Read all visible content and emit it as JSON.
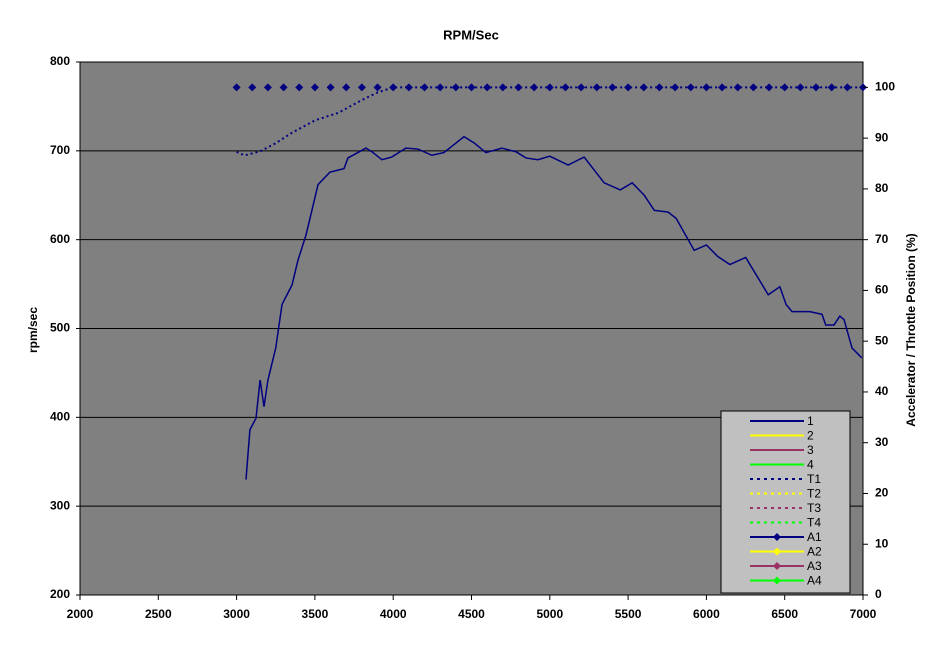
{
  "chart_data": {
    "type": "line",
    "title": "RPM/Sec",
    "ylabel": "rpm/sec",
    "y2label": "Accelerator / Throttle Position (%)",
    "xlim": [
      2000,
      7000
    ],
    "xticks": [
      2000,
      2500,
      3000,
      3500,
      4000,
      4500,
      5000,
      5500,
      6000,
      6500,
      7000
    ],
    "ylim": [
      200,
      800
    ],
    "yticks": [
      200,
      300,
      400,
      500,
      600,
      700,
      800
    ],
    "y2lim": [
      0,
      105
    ],
    "y2ticks": [
      0,
      10,
      20,
      30,
      40,
      50,
      60,
      70,
      80,
      90,
      100
    ],
    "grid": true,
    "legend": "bottom-right",
    "series": [
      {
        "name": "1",
        "color": "#000080",
        "style": "solid",
        "x": [
          3060,
          3085,
          3124,
          3150,
          3175,
          3200,
          3250,
          3290,
          3354,
          3392,
          3443,
          3481,
          3520,
          3596,
          3686,
          3711,
          3826,
          3864,
          3928,
          3990,
          4081,
          4158,
          4247,
          4324,
          4452,
          4516,
          4592,
          4694,
          4784,
          4848,
          4924,
          5000,
          5117,
          5219,
          5347,
          5450,
          5526,
          5603,
          5667,
          5756,
          5807,
          5922,
          6000,
          6073,
          6150,
          6251,
          6395,
          6469,
          6509,
          6547,
          6660,
          6738,
          6762,
          6815,
          6852,
          6879,
          6930,
          6992
        ],
        "values": [
          330,
          386,
          399,
          442,
          412,
          442,
          478,
          527,
          549,
          577,
          605,
          633,
          662,
          676,
          680,
          692,
          703,
          699,
          690,
          693,
          703,
          702,
          695,
          698,
          716,
          709,
          698,
          703,
          699,
          692,
          690,
          694,
          684,
          693,
          664,
          656,
          664,
          650,
          633,
          631,
          624,
          588,
          594,
          581,
          572,
          580,
          538,
          547,
          527,
          519,
          519,
          516,
          504,
          504,
          514,
          510,
          478,
          467
        ]
      },
      {
        "name": "2",
        "color": "#ffff00",
        "style": "solid",
        "x": [],
        "values": []
      },
      {
        "name": "3",
        "color": "#993366",
        "style": "solid",
        "x": [],
        "values": []
      },
      {
        "name": "4",
        "color": "#00ff00",
        "style": "solid",
        "x": [],
        "values": []
      },
      {
        "name": "T1",
        "color": "#000080",
        "style": "dotted",
        "axis": "y2",
        "x": [
          3000,
          3050,
          3150,
          3250,
          3350,
          3500,
          3650,
          3800,
          3900,
          4000,
          7000
        ],
        "values": [
          87.3,
          86.6,
          87.4,
          89,
          91,
          93.5,
          95,
          97.5,
          99,
          100,
          100
        ]
      },
      {
        "name": "T2",
        "color": "#ffff00",
        "style": "dotted",
        "axis": "y2",
        "x": [],
        "values": []
      },
      {
        "name": "T3",
        "color": "#993366",
        "style": "dotted",
        "axis": "y2",
        "x": [],
        "values": []
      },
      {
        "name": "T4",
        "color": "#00ff00",
        "style": "dotted",
        "axis": "y2",
        "x": [],
        "values": []
      },
      {
        "name": "A1",
        "color": "#000080",
        "style": "marker",
        "axis": "y2",
        "x": [
          3000,
          3100,
          3200,
          3300,
          3400,
          3500,
          3600,
          3700,
          3800,
          3900,
          4000,
          4100,
          4200,
          4300,
          4400,
          4500,
          4600,
          4700,
          4800,
          4900,
          5000,
          5100,
          5200,
          5300,
          5400,
          5500,
          5600,
          5700,
          5800,
          5900,
          6000,
          6100,
          6200,
          6300,
          6400,
          6500,
          6600,
          6700,
          6800,
          6900,
          7000
        ],
        "values": [
          100,
          100,
          100,
          100,
          100,
          100,
          100,
          100,
          100,
          100,
          100,
          100,
          100,
          100,
          100,
          100,
          100,
          100,
          100,
          100,
          100,
          100,
          100,
          100,
          100,
          100,
          100,
          100,
          100,
          100,
          100,
          100,
          100,
          100,
          100,
          100,
          100,
          100,
          100,
          100,
          100
        ]
      },
      {
        "name": "A2",
        "color": "#ffff00",
        "style": "marker",
        "axis": "y2",
        "x": [],
        "values": []
      },
      {
        "name": "A3",
        "color": "#993366",
        "style": "marker",
        "axis": "y2",
        "x": [],
        "values": []
      },
      {
        "name": "A4",
        "color": "#00ff00",
        "style": "marker",
        "axis": "y2",
        "x": [],
        "values": []
      }
    ]
  }
}
